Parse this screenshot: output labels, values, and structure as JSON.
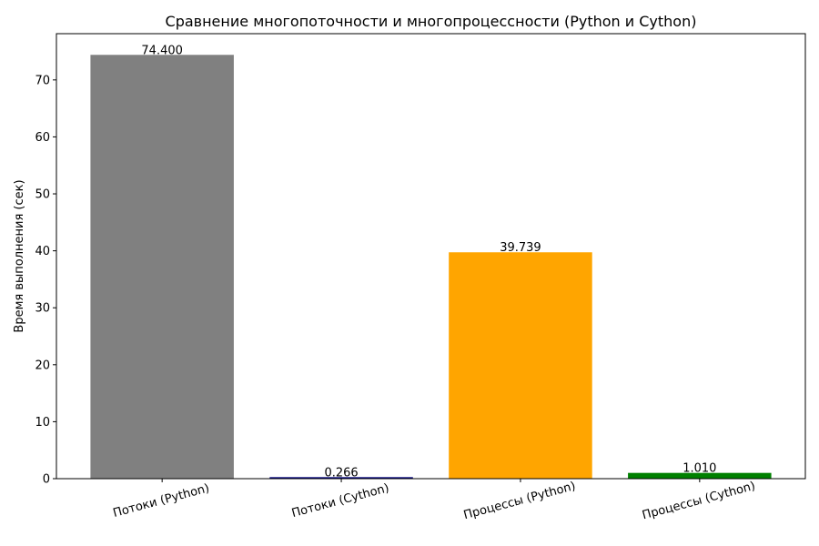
{
  "chart_data": {
    "type": "bar",
    "title": "Сравнение многопоточности и многопроцессности (Python и Cython)",
    "xlabel": "",
    "ylabel": "Время выполнения (сек)",
    "categories": [
      "Потоки (Python)",
      "Потоки (Cython)",
      "Процессы (Python)",
      "Процессы (Cython)"
    ],
    "values": [
      74.4,
      0.266,
      39.739,
      1.01
    ],
    "value_labels": [
      "74.400",
      "0.266",
      "39.739",
      "1.010"
    ],
    "colors": [
      "#808080",
      "#000080",
      "#ffa500",
      "#008000"
    ],
    "ylim": [
      0,
      78.12
    ],
    "yticks": [
      0,
      10,
      20,
      30,
      40,
      50,
      60,
      70
    ],
    "grid": false,
    "legend": "none"
  }
}
